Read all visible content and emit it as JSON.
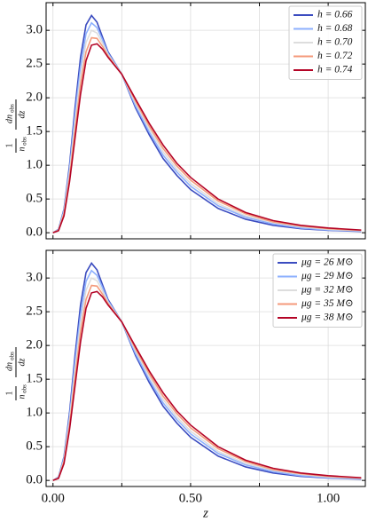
{
  "chart_data": [
    {
      "type": "line",
      "ylabel": {
        "numerator": "1",
        "denominator": "n",
        "denominator_sub": "obs",
        "derivative_numerator": "dn",
        "derivative_numerator_sub": "obs",
        "derivative_denominator": "dz"
      },
      "x": [
        0,
        0.02,
        0.04,
        0.06,
        0.08,
        0.1,
        0.12,
        0.14,
        0.16,
        0.18,
        0.2,
        0.25,
        0.3,
        0.35,
        0.4,
        0.45,
        0.5,
        0.6,
        0.7,
        0.8,
        0.9,
        1.0,
        1.12
      ],
      "series": [
        {
          "name": "h = 0.66",
          "color": "#3b4cc0",
          "values": [
            0,
            0.05,
            0.35,
            1.0,
            1.85,
            2.6,
            3.08,
            3.22,
            3.12,
            2.9,
            2.68,
            2.35,
            1.85,
            1.45,
            1.1,
            0.85,
            0.64,
            0.36,
            0.2,
            0.11,
            0.06,
            0.035,
            0.02
          ]
        },
        {
          "name": "h = 0.68",
          "color": "#8db0fe",
          "values": [
            0,
            0.045,
            0.33,
            0.94,
            1.74,
            2.46,
            2.95,
            3.11,
            3.04,
            2.86,
            2.66,
            2.35,
            1.88,
            1.49,
            1.15,
            0.9,
            0.69,
            0.4,
            0.23,
            0.13,
            0.07,
            0.04,
            0.025
          ]
        },
        {
          "name": "h = 0.70",
          "color": "#dddddd",
          "values": [
            0,
            0.04,
            0.3,
            0.88,
            1.63,
            2.33,
            2.82,
            3.0,
            2.96,
            2.81,
            2.64,
            2.35,
            1.92,
            1.54,
            1.2,
            0.94,
            0.73,
            0.43,
            0.25,
            0.15,
            0.09,
            0.05,
            0.03
          ]
        },
        {
          "name": "h = 0.72",
          "color": "#f49a7b",
          "values": [
            0,
            0.035,
            0.28,
            0.81,
            1.51,
            2.19,
            2.68,
            2.89,
            2.88,
            2.76,
            2.62,
            2.35,
            1.95,
            1.58,
            1.25,
            0.99,
            0.78,
            0.47,
            0.28,
            0.16,
            0.1,
            0.06,
            0.035
          ]
        },
        {
          "name": "h = 0.74",
          "color": "#b40426",
          "values": [
            0,
            0.03,
            0.25,
            0.75,
            1.4,
            2.05,
            2.55,
            2.78,
            2.8,
            2.72,
            2.6,
            2.35,
            1.98,
            1.62,
            1.3,
            1.03,
            0.82,
            0.5,
            0.3,
            0.18,
            0.11,
            0.07,
            0.04
          ]
        }
      ],
      "xlim": [
        -0.025,
        1.135
      ],
      "ylim": [
        -0.09,
        3.41
      ],
      "xticks": [
        0,
        0.25,
        0.5,
        0.75,
        1
      ],
      "yticks": [
        {
          "value": 0,
          "label": "0.0"
        },
        0.5,
        {
          "value": 1,
          "label": "1.0"
        },
        1.5,
        {
          "value": 2,
          "label": "2.0"
        },
        2.5,
        {
          "value": 3,
          "label": "3.0"
        }
      ],
      "grid": true,
      "legend": "upper right"
    },
    {
      "type": "line",
      "xlabel": "z",
      "ylabel": {
        "numerator": "1",
        "denominator": "n",
        "denominator_sub": "obs",
        "derivative_numerator": "dn",
        "derivative_numerator_sub": "obs",
        "derivative_denominator": "dz"
      },
      "x": [
        0,
        0.02,
        0.04,
        0.06,
        0.08,
        0.1,
        0.12,
        0.14,
        0.16,
        0.18,
        0.2,
        0.25,
        0.3,
        0.35,
        0.4,
        0.45,
        0.5,
        0.6,
        0.7,
        0.8,
        0.9,
        1.0,
        1.12
      ],
      "series": [
        {
          "name": "μg = 26 M⊙",
          "color": "#3b4cc0",
          "values": [
            0,
            0.05,
            0.35,
            1.0,
            1.85,
            2.6,
            3.08,
            3.22,
            3.12,
            2.9,
            2.68,
            2.35,
            1.85,
            1.45,
            1.1,
            0.85,
            0.64,
            0.36,
            0.2,
            0.11,
            0.06,
            0.035,
            0.02
          ]
        },
        {
          "name": "μg = 29 M⊙",
          "color": "#8db0fe",
          "values": [
            0,
            0.045,
            0.33,
            0.94,
            1.74,
            2.46,
            2.95,
            3.11,
            3.04,
            2.86,
            2.66,
            2.35,
            1.88,
            1.49,
            1.15,
            0.9,
            0.69,
            0.4,
            0.23,
            0.13,
            0.07,
            0.04,
            0.025
          ]
        },
        {
          "name": "μg = 32 M⊙",
          "color": "#dddddd",
          "values": [
            0,
            0.04,
            0.3,
            0.88,
            1.63,
            2.33,
            2.82,
            3.0,
            2.96,
            2.81,
            2.64,
            2.35,
            1.92,
            1.54,
            1.2,
            0.94,
            0.73,
            0.43,
            0.25,
            0.15,
            0.09,
            0.05,
            0.03
          ]
        },
        {
          "name": "μg = 35 M⊙",
          "color": "#f49a7b",
          "values": [
            0,
            0.035,
            0.28,
            0.81,
            1.51,
            2.19,
            2.68,
            2.89,
            2.88,
            2.76,
            2.62,
            2.35,
            1.95,
            1.58,
            1.25,
            0.99,
            0.78,
            0.47,
            0.28,
            0.16,
            0.1,
            0.06,
            0.035
          ]
        },
        {
          "name": "μg = 38 M⊙",
          "color": "#b40426",
          "values": [
            0,
            0.03,
            0.25,
            0.75,
            1.4,
            2.05,
            2.55,
            2.78,
            2.8,
            2.72,
            2.6,
            2.35,
            1.98,
            1.62,
            1.3,
            1.03,
            0.82,
            0.5,
            0.3,
            0.18,
            0.11,
            0.07,
            0.04
          ]
        }
      ],
      "xlim": [
        -0.025,
        1.135
      ],
      "ylim": [
        -0.09,
        3.41
      ],
      "xticks": [
        {
          "value": 0,
          "label": "0.00"
        },
        0.25,
        {
          "value": 0.5,
          "label": "0.50"
        },
        0.75,
        {
          "value": 1,
          "label": "1.00"
        }
      ],
      "yticks": [
        {
          "value": 0,
          "label": "0.0"
        },
        0.5,
        {
          "value": 1,
          "label": "1.0"
        },
        1.5,
        {
          "value": 2,
          "label": "2.0"
        },
        2.5,
        {
          "value": 3,
          "label": "3.0"
        }
      ],
      "grid": true,
      "legend": "upper right"
    }
  ]
}
